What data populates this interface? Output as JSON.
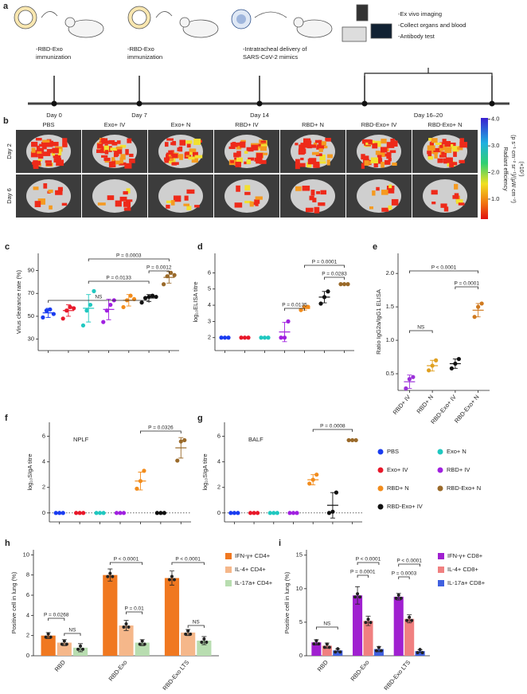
{
  "panel_a": {
    "label": "a",
    "steps": [
      [
        "-RBD-Exo",
        "immunization"
      ],
      [
        "-RBD-Exo",
        "immunization"
      ],
      [
        "-Intratracheal delivery of",
        "SARS-CoV-2 mimics"
      ]
    ],
    "analysis": [
      "-Ex vivo imaging",
      "-Collect organs and blood",
      "-Antibody test"
    ],
    "days": [
      "Day 0",
      "Day 7",
      "Day 14",
      "Day 16–20"
    ]
  },
  "panel_b": {
    "label": "b",
    "groups": [
      "PBS",
      "Exo+ IV",
      "Exo+ N",
      "RBD+ IV",
      "RBD+ N",
      "RBD-Exo+ IV",
      "RBD-Exo+ N"
    ],
    "rows": [
      "Day 2",
      "Day 6"
    ],
    "colorbar": {
      "label": "Radiant efficiency",
      "units": "(p s⁻¹ cm⁻² sr⁻¹)/(μW cm⁻²)",
      "scale": "(×10⁷)",
      "lim": [
        0.25,
        4.05
      ],
      "ticks": [
        {
          "value": 4,
          "label": "4.0"
        },
        {
          "value": 3,
          "label": "3.0"
        },
        {
          "value": 2,
          "label": "2.0"
        },
        {
          "value": 1,
          "label": "1.0"
        }
      ]
    }
  },
  "legend": [
    {
      "name": "PBS",
      "color": "#1a3cf0"
    },
    {
      "name": "Exo+ N",
      "color": "#20c8c0"
    },
    {
      "name": "Exo+ IV",
      "color": "#e8182a"
    },
    {
      "name": "RBD+ IV",
      "color": "#a020e0"
    },
    {
      "name": "RBD+ N",
      "color": "#f28c1c"
    },
    {
      "name": "RBD-Exo+ N",
      "color": "#9a6a2a"
    },
    {
      "name": "RBD-Exo+ IV",
      "color": "#111111"
    }
  ],
  "chart_data": [
    {
      "type": "dot",
      "label": "c",
      "ylabel": "Virus clearance rate (%)",
      "ylim": [
        20,
        105
      ],
      "yticks": [
        30,
        50,
        70,
        90
      ],
      "groups": [
        {
          "color": "#1a3cf0",
          "points": [
            49,
            55,
            56,
            52
          ],
          "mean": 53,
          "error": 4
        },
        {
          "color": "#e8182a",
          "points": [
            48,
            55,
            58,
            57
          ],
          "mean": 55,
          "error": 5
        },
        {
          "color": "#20c8c0",
          "points": [
            42,
            55,
            60,
            72
          ],
          "mean": 57,
          "error": 12
        },
        {
          "color": "#a020e0",
          "points": [
            45,
            55,
            60,
            64
          ],
          "mean": 56,
          "error": 9
        },
        {
          "color": "#f28c1c",
          "points": [
            58,
            64,
            68,
            65
          ],
          "mean": 64,
          "error": 5
        },
        {
          "color": "#111111",
          "points": [
            62,
            66,
            67,
            68,
            67
          ],
          "mean": 66,
          "error": 3
        },
        {
          "color": "#9a6a2a",
          "points": [
            78,
            85,
            88,
            86
          ],
          "mean": 84,
          "error": 5
        }
      ],
      "annotations": [
        "NS",
        "P = 0.0133",
        "P = 0.0012",
        "P = 0.0003"
      ]
    },
    {
      "type": "dot",
      "label": "d",
      "ylabel": "log₁₀ELISA titre",
      "ylim": [
        1.2,
        7.2
      ],
      "yticks": [
        2,
        3,
        4,
        5,
        6
      ],
      "groups": [
        {
          "color": "#1a3cf0",
          "points": [
            2,
            2,
            2
          ],
          "mean": 2,
          "error": 0
        },
        {
          "color": "#e8182a",
          "points": [
            2,
            2,
            2
          ],
          "mean": 2,
          "error": 0
        },
        {
          "color": "#20c8c0",
          "points": [
            2,
            2,
            2
          ],
          "mean": 2,
          "error": 0
        },
        {
          "color": "#a020e0",
          "points": [
            2,
            2,
            3
          ],
          "mean": 2.35,
          "error": 0.6
        },
        {
          "color": "#f28c1c",
          "points": [
            3.7,
            3.9,
            3.9
          ],
          "mean": 3.8,
          "error": 0.1
        },
        {
          "color": "#111111",
          "points": [
            4.1,
            4.5,
            4.85
          ],
          "mean": 4.5,
          "error": 0.35
        },
        {
          "color": "#9a6a2a",
          "points": [
            5.3,
            5.3,
            5.3
          ],
          "mean": 5.3,
          "error": 0
        }
      ],
      "annotations": [
        "P = 0.0135",
        "P = 0.0283",
        "P = 0.0001"
      ]
    },
    {
      "type": "dot",
      "label": "e",
      "ylabel": "Ratio IgG2a/IgG1 ELISA",
      "ylim": [
        0.25,
        2.3
      ],
      "yticks": [
        0.5,
        {
          "value": 1,
          "label": "1.0"
        },
        1.5,
        {
          "value": 2,
          "label": "2.0"
        }
      ],
      "categories": [
        "RBD+ IV",
        "RBD+ N",
        "RBD-Exo+ IV",
        "RBD-Exo+ N"
      ],
      "groups": [
        {
          "color": "#9b30d9",
          "points": [
            0.28,
            0.42,
            0.45
          ],
          "mean": 0.38,
          "error": 0.1
        },
        {
          "color": "#e0a020",
          "points": [
            0.55,
            0.62,
            0.7
          ],
          "mean": 0.62,
          "error": 0.08
        },
        {
          "color": "#111111",
          "points": [
            0.58,
            0.65,
            0.72
          ],
          "mean": 0.65,
          "error": 0.07
        },
        {
          "color": "#d07a20",
          "points": [
            1.35,
            1.5,
            1.55
          ],
          "mean": 1.45,
          "error": 0.1
        }
      ],
      "annotations": [
        "NS",
        "P = 0.0001",
        "P < 0.0001"
      ]
    },
    {
      "type": "dot",
      "label": "f",
      "title": "NPLF",
      "ylabel": "log₁₀SIgA titre",
      "ylim": [
        -0.7,
        7.1
      ],
      "yticks": [
        0,
        2,
        4,
        6
      ],
      "groups": [
        {
          "color": "#1a3cf0",
          "points": [
            0,
            0,
            0
          ],
          "mean": 0,
          "error": 0
        },
        {
          "color": "#e8182a",
          "points": [
            0,
            0,
            0
          ],
          "mean": 0,
          "error": 0
        },
        {
          "color": "#20c8c0",
          "points": [
            0,
            0,
            0
          ],
          "mean": 0,
          "error": 0
        },
        {
          "color": "#a020e0",
          "points": [
            0,
            0,
            0
          ],
          "mean": 0,
          "error": 0
        },
        {
          "color": "#f28c1c",
          "points": [
            1.9,
            2.5,
            3.3
          ],
          "mean": 2.5,
          "error": 0.7
        },
        {
          "color": "#111111",
          "points": [
            0,
            0,
            0
          ],
          "mean": 0,
          "error": 0
        },
        {
          "color": "#9a6a2a",
          "points": [
            4.1,
            5.6,
            5.7
          ],
          "mean": 5.1,
          "error": 0.8
        }
      ],
      "annotations": [
        "P = 0.0326"
      ]
    },
    {
      "type": "dot",
      "label": "g",
      "title": "BALF",
      "ylabel": "log₁₀SIgA titre",
      "ylim": [
        -0.7,
        7.1
      ],
      "yticks": [
        0,
        2,
        4,
        6
      ],
      "groups": [
        {
          "color": "#1a3cf0",
          "points": [
            0,
            0,
            0
          ],
          "mean": 0,
          "error": 0
        },
        {
          "color": "#e8182a",
          "points": [
            0,
            0,
            0
          ],
          "mean": 0,
          "error": 0
        },
        {
          "color": "#20c8c0",
          "points": [
            0,
            0,
            0
          ],
          "mean": 0,
          "error": 0
        },
        {
          "color": "#a020e0",
          "points": [
            0,
            0,
            0
          ],
          "mean": 0,
          "error": 0
        },
        {
          "color": "#f28c1c",
          "points": [
            2.3,
            2.6,
            3.0
          ],
          "mean": 2.6,
          "error": 0.4
        },
        {
          "color": "#111111",
          "points": [
            0,
            0.1,
            1.6
          ],
          "mean": 0.6,
          "error": 1
        },
        {
          "color": "#9a6a2a",
          "points": [
            5.7,
            5.7,
            5.7
          ],
          "mean": 5.7,
          "error": 0
        }
      ],
      "annotations": [
        "P = 0.0008"
      ]
    },
    {
      "type": "bar",
      "label": "h",
      "ylabel": "Positive cell in lung (%)",
      "ylim": [
        0,
        10.5
      ],
      "yticks": [
        0,
        2,
        4,
        6,
        8,
        10
      ],
      "categories": [
        "RBD",
        "RBD-Exo",
        "RBD-Exo LTS"
      ],
      "series": [
        {
          "name": "IFN-γ+ CD4+",
          "color": "#f07820",
          "values": [
            2.0,
            8.0,
            7.7
          ],
          "errors": [
            0.3,
            0.6,
            0.7
          ]
        },
        {
          "name": "IL-4+ CD4+",
          "color": "#f5b78a",
          "values": [
            1.3,
            3.0,
            2.3
          ],
          "errors": [
            0.3,
            0.5,
            0.3
          ]
        },
        {
          "name": "IL-17a+ CD4+",
          "color": "#b8ddb0",
          "values": [
            0.8,
            1.3,
            1.5
          ],
          "errors": [
            0.4,
            0.3,
            0.4
          ]
        }
      ],
      "annotations": [
        "P = 0.0268",
        "NS",
        "P < 0.0001",
        "P = 0.01",
        "P < 0.0001",
        "NS"
      ]
    },
    {
      "type": "bar",
      "label": "i",
      "ylabel": "Positive cell in lung (%)",
      "ylim": [
        0,
        15.8
      ],
      "yticks": [
        0,
        5,
        10,
        15
      ],
      "categories": [
        "RBD",
        "RBD-Exo",
        "RBD-Exo LTS"
      ],
      "series": [
        {
          "name": "IFN-γ+ CD8+",
          "color": "#a020d0",
          "values": [
            2.0,
            9.0,
            8.8
          ],
          "errors": [
            0.4,
            1.3,
            0.5
          ]
        },
        {
          "name": "IL-4+ CD8+",
          "color": "#f08080",
          "values": [
            1.5,
            5.2,
            5.5
          ],
          "errors": [
            0.4,
            0.7,
            0.6
          ]
        },
        {
          "name": "IL-17a+ CD8+",
          "color": "#4060e0",
          "values": [
            0.8,
            1.0,
            0.7
          ],
          "errors": [
            0.2,
            0.4,
            0.2
          ]
        }
      ],
      "annotations": [
        "NS",
        "P = 0.0001",
        "P < 0.0001",
        "P = 0.0003",
        "P < 0.0001"
      ]
    }
  ]
}
